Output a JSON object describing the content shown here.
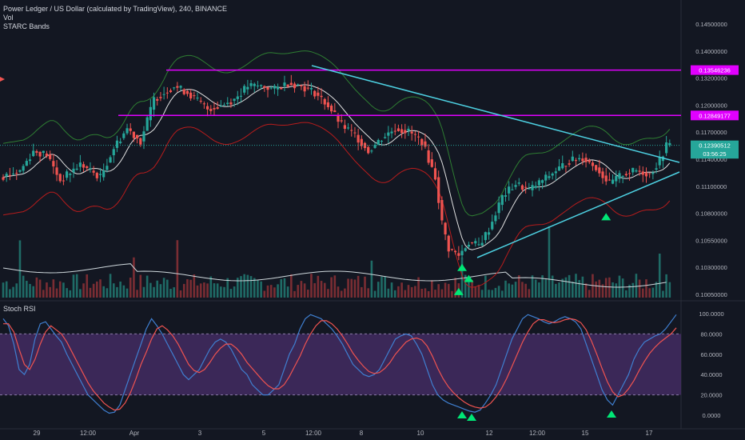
{
  "header": {
    "title": "Power Ledger / US Dollar (calculated by TradingView), 240, BINANCE",
    "vol_label": "Vol",
    "starc_label": "STARC Bands",
    "stoch_label": "Stoch RSI"
  },
  "price_axis": {
    "ticks": [
      "0.14500000",
      "0.14000000",
      "0.13200000",
      "0.12000000",
      "0.11700000",
      "0.11400000",
      "0.11100000",
      "0.10800000",
      "0.10550000",
      "0.10300000",
      "0.10050000"
    ],
    "ylim": [
      0.1005,
      0.145
    ]
  },
  "price_tags": [
    {
      "label": "0.13546236",
      "value": 0.13546,
      "color": "#e100ff"
    },
    {
      "label": "0.12849177",
      "value": 0.12849,
      "color": "#e100ff"
    },
    {
      "label": "0.12390512",
      "value": 0.1239,
      "color": "#26a69a"
    },
    {
      "label": "03:56:25",
      "value": 0.1226,
      "color": "#26a69a"
    }
  ],
  "stoch_axis": {
    "ticks": [
      "100.0000",
      "80.0000",
      "60.0000",
      "40.0000",
      "20.0000",
      "0.0000"
    ],
    "ylim": [
      0,
      100
    ]
  },
  "time_axis": [
    "29",
    "12:00",
    "Apr",
    "3",
    "5",
    "12:00",
    "8",
    "10",
    "12",
    "12:00",
    "15",
    "17"
  ],
  "colors": {
    "background": "#131722",
    "up": "#26a69a",
    "down": "#ef5350",
    "vol_up": "#1f6b66",
    "vol_down": "#7a2d33",
    "magenta_level": "#e100ff",
    "trendline": "#4dd0e1",
    "starc_upper": "#2e7d32",
    "starc_lower": "#b71c1c",
    "starc_middle": "#e0e0e0",
    "stoch_k": "#3f7fd0",
    "stoch_d": "#ef5350",
    "stoch_band": "#4a2f6b",
    "signal_arrow": "#00e676"
  },
  "chart_data": [
    {
      "type": "candlestick",
      "title": "Power Ledger / US Dollar (calculated by TradingView), 240, BINANCE",
      "xlabel": "",
      "ylabel": "",
      "ylim": [
        0.1005,
        0.145
      ],
      "x_categories": [
        "29",
        "12:00",
        "Apr",
        "3",
        "5",
        "12:00",
        "8",
        "10",
        "12",
        "12:00",
        "15",
        "17"
      ],
      "horizontal_levels": [
        0.13546,
        0.12849
      ],
      "last_price": 0.1239,
      "close_path": [
        {
          "x": 0,
          "y": 0.119
        },
        {
          "x": 6,
          "y": 0.12
        },
        {
          "x": 10,
          "y": 0.123
        },
        {
          "x": 14,
          "y": 0.1225
        },
        {
          "x": 18,
          "y": 0.1185
        },
        {
          "x": 24,
          "y": 0.121
        },
        {
          "x": 30,
          "y": 0.119
        },
        {
          "x": 34,
          "y": 0.1235
        },
        {
          "x": 38,
          "y": 0.1265
        },
        {
          "x": 42,
          "y": 0.1245
        },
        {
          "x": 46,
          "y": 0.131
        },
        {
          "x": 52,
          "y": 0.133
        },
        {
          "x": 56,
          "y": 0.132
        },
        {
          "x": 62,
          "y": 0.1295
        },
        {
          "x": 66,
          "y": 0.13
        },
        {
          "x": 70,
          "y": 0.131
        },
        {
          "x": 74,
          "y": 0.133
        },
        {
          "x": 78,
          "y": 0.133
        },
        {
          "x": 82,
          "y": 0.1325
        },
        {
          "x": 86,
          "y": 0.1335
        },
        {
          "x": 90,
          "y": 0.133
        },
        {
          "x": 94,
          "y": 0.132
        },
        {
          "x": 98,
          "y": 0.13
        },
        {
          "x": 102,
          "y": 0.127
        },
        {
          "x": 106,
          "y": 0.1255
        },
        {
          "x": 110,
          "y": 0.123
        },
        {
          "x": 114,
          "y": 0.125
        },
        {
          "x": 118,
          "y": 0.1265
        },
        {
          "x": 122,
          "y": 0.126
        },
        {
          "x": 126,
          "y": 0.1245
        },
        {
          "x": 130,
          "y": 0.119
        },
        {
          "x": 132,
          "y": 0.112
        },
        {
          "x": 134,
          "y": 0.108
        },
        {
          "x": 137,
          "y": 0.107
        },
        {
          "x": 140,
          "y": 0.109
        },
        {
          "x": 143,
          "y": 0.1085
        },
        {
          "x": 146,
          "y": 0.111
        },
        {
          "x": 150,
          "y": 0.116
        },
        {
          "x": 154,
          "y": 0.118
        },
        {
          "x": 158,
          "y": 0.117
        },
        {
          "x": 162,
          "y": 0.1185
        },
        {
          "x": 166,
          "y": 0.12
        },
        {
          "x": 170,
          "y": 0.1215
        },
        {
          "x": 174,
          "y": 0.122
        },
        {
          "x": 178,
          "y": 0.1205
        },
        {
          "x": 182,
          "y": 0.118
        },
        {
          "x": 186,
          "y": 0.1195
        },
        {
          "x": 190,
          "y": 0.12
        },
        {
          "x": 194,
          "y": 0.1195
        },
        {
          "x": 197,
          "y": 0.1215
        },
        {
          "x": 199,
          "y": 0.1239
        }
      ],
      "markers": [
        {
          "label": "buy",
          "x": 137,
          "y": 0.1052
        },
        {
          "label": "buy",
          "x": 139,
          "y": 0.1035
        },
        {
          "label": "buy",
          "x": 136,
          "y": 0.1015
        },
        {
          "label": "buy",
          "x": 180,
          "y": 0.113
        }
      ]
    },
    {
      "type": "line",
      "title": "Stoch RSI",
      "xlabel": "",
      "ylabel": "",
      "ylim": [
        0,
        100
      ],
      "bands": [
        20,
        80
      ],
      "series": [
        {
          "name": "",
          "values": [
            95,
            88,
            70,
            45,
            40,
            50,
            75,
            90,
            92,
            85,
            78,
            72,
            60,
            50,
            40,
            30,
            20,
            15,
            10,
            5,
            2,
            3,
            10,
            25,
            40,
            55,
            70,
            85,
            95,
            88,
            80,
            70,
            60,
            50,
            40,
            35,
            40,
            45,
            55,
            65,
            72,
            75,
            72,
            65,
            55,
            45,
            40,
            30,
            25,
            20,
            20,
            25,
            30,
            45,
            60,
            70,
            85,
            95,
            99,
            97,
            95,
            90,
            85,
            78,
            70,
            60,
            50,
            45,
            40,
            38,
            40,
            45,
            55,
            65,
            75,
            78,
            80,
            78,
            70,
            60,
            45,
            30,
            20,
            15,
            12,
            10,
            8,
            6,
            4,
            3,
            5,
            12,
            20,
            30,
            45,
            60,
            75,
            85,
            95,
            99,
            97,
            95,
            92,
            90,
            92,
            95,
            97,
            95,
            92,
            85,
            70,
            55,
            40,
            25,
            15,
            10,
            20,
            30,
            40,
            55,
            65,
            72,
            75,
            78,
            80,
            85,
            92,
            99
          ]
        },
        {
          "name": "",
          "values": [
            90,
            90,
            82,
            65,
            50,
            45,
            55,
            70,
            82,
            88,
            84,
            80,
            72,
            62,
            52,
            42,
            32,
            24,
            18,
            12,
            8,
            5,
            6,
            12,
            22,
            35,
            50,
            62,
            75,
            85,
            88,
            84,
            78,
            70,
            60,
            50,
            44,
            42,
            45,
            52,
            60,
            66,
            70,
            70,
            66,
            60,
            52,
            46,
            40,
            34,
            29,
            26,
            26,
            30,
            38,
            48,
            58,
            70,
            80,
            88,
            93,
            93,
            90,
            85,
            78,
            70,
            61,
            54,
            48,
            43,
            41,
            42,
            46,
            52,
            60,
            66,
            72,
            75,
            76,
            74,
            68,
            58,
            46,
            36,
            28,
            22,
            17,
            13,
            10,
            8,
            7,
            8,
            12,
            18,
            26,
            36,
            48,
            60,
            72,
            82,
            90,
            94,
            94,
            92,
            91,
            92,
            94,
            95,
            94,
            91,
            84,
            73,
            60,
            46,
            33,
            23,
            18,
            20,
            26,
            34,
            44,
            53,
            61,
            67,
            72,
            76,
            80,
            86
          ]
        }
      ]
    }
  ]
}
